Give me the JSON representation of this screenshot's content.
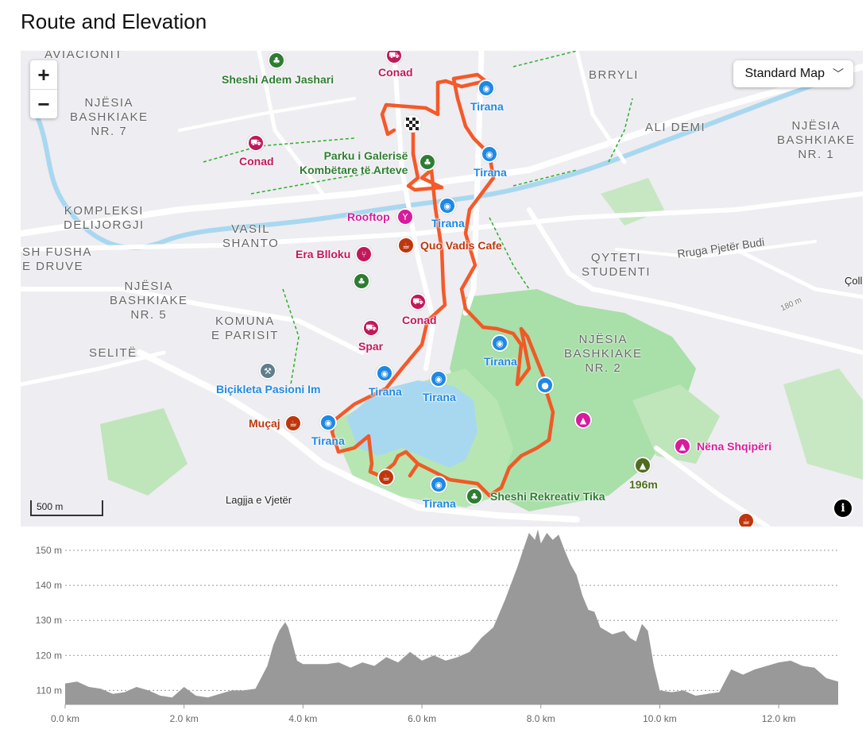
{
  "page": {
    "title": "Route and Elevation"
  },
  "map": {
    "zoom_in": "+",
    "zoom_out": "−",
    "map_style_label": "Standard Map",
    "scale_label": "500 m",
    "info_symbol": "i",
    "start_marker_icon": "checkered-flag-icon",
    "route_color": "#f4511e",
    "area_labels": [
      {
        "text": "AVIACIONIT"
      },
      {
        "text": "NJËSIA\nBASHKIAKE\nNR. 7"
      },
      {
        "text": "BRRYLI"
      },
      {
        "text": "ALI DEMI"
      },
      {
        "text": "NJËSIA\nBASHKIAKE\nNR. 1"
      },
      {
        "text": "KOMPLEKSI\nDELIJORGJI"
      },
      {
        "text": "VASIL\nSHANTO"
      },
      {
        "text": "SH FUSHA\nE DRUVE"
      },
      {
        "text": "QYTETI\nSTUDENTI"
      },
      {
        "text": "NJËSIA\nBASHKIAKE\nNR. 5"
      },
      {
        "text": "KOMUNA\nE PARISIT"
      },
      {
        "text": "SELITË"
      },
      {
        "text": "NJËSIA\nBASHKIAKE\nNR. 2"
      }
    ],
    "street_labels": [
      {
        "text": "Rruga Pjetër Budi"
      },
      {
        "text": "180 m"
      },
      {
        "text": "Lagjja e Vjetër"
      },
      {
        "text": "Çoll"
      }
    ],
    "pois": [
      {
        "icon": "tree-icon",
        "color": "#2e7d32",
        "label": "Sheshi Adem Jashari",
        "label_color": "#2e7d32"
      },
      {
        "icon": "cart-icon",
        "color": "#c2185b",
        "label": "Conad",
        "label_color": "#c2185b"
      },
      {
        "icon": "camera-icon",
        "color": "#1e88e5",
        "label": "Tirana",
        "label_color": "#1e88e5"
      },
      {
        "icon": "cart-icon",
        "color": "#c2185b",
        "label": "Conad",
        "label_color": "#c2185b"
      },
      {
        "icon": "tree-icon",
        "color": "#2e7d32",
        "label": "Parku i Galerisë\nKombëtare të Arteve",
        "label_color": "#2e7d32"
      },
      {
        "icon": "camera-icon",
        "color": "#1e88e5",
        "label": "Tirana",
        "label_color": "#1e88e5"
      },
      {
        "icon": "cocktail-icon",
        "color": "#d81b9c",
        "label": "Rooftop",
        "label_color": "#d81b9c"
      },
      {
        "icon": "camera-icon",
        "color": "#1e88e5",
        "label": "Tirana",
        "label_color": "#1e88e5"
      },
      {
        "icon": "coffee-icon",
        "color": "#bf360c",
        "label": "Quo Vadis Cafe",
        "label_color": "#bf360c"
      },
      {
        "icon": "restaurant-icon",
        "color": "#c2185b",
        "label": "Era Blloku",
        "label_color": "#c2185b"
      },
      {
        "icon": "tree-icon",
        "color": "#2e7d32",
        "label": "",
        "label_color": "#2e7d32"
      },
      {
        "icon": "cart-icon",
        "color": "#c2185b",
        "label": "Conad",
        "label_color": "#c2185b"
      },
      {
        "icon": "cart-icon",
        "color": "#c2185b",
        "label": "Spar",
        "label_color": "#c2185b"
      },
      {
        "icon": "camera-icon",
        "color": "#1e88e5",
        "label": "Tirana",
        "label_color": "#1e88e5"
      },
      {
        "icon": "camera-icon",
        "color": "#1e88e5",
        "label": "Tirana",
        "label_color": "#1e88e5"
      },
      {
        "icon": "camera-icon",
        "color": "#1e88e5",
        "label": "Tirana",
        "label_color": "#1e88e5"
      },
      {
        "icon": "wrench-icon",
        "color": "#607d8b",
        "label": "Biçikleta Pasioni Im",
        "label_color": "#1e88e5"
      },
      {
        "icon": "water-icon",
        "color": "#1e88e5",
        "label": "",
        "label_color": "#1e88e5"
      },
      {
        "icon": "monument-icon",
        "color": "#d81b9c",
        "label": "",
        "label_color": "#d81b9c"
      },
      {
        "icon": "monument-icon",
        "color": "#d81b9c",
        "label": "Nëna Shqipëri",
        "label_color": "#d81b9c"
      },
      {
        "icon": "coffee-icon",
        "color": "#bf360c",
        "label": "Muçaj",
        "label_color": "#bf360c"
      },
      {
        "icon": "camera-icon",
        "color": "#1e88e5",
        "label": "Tirana",
        "label_color": "#1e88e5"
      },
      {
        "icon": "coffee-icon",
        "color": "#bf360c",
        "label": "",
        "label_color": "#bf360c"
      },
      {
        "icon": "camera-icon",
        "color": "#1e88e5",
        "label": "Tirana",
        "label_color": "#1e88e5"
      },
      {
        "icon": "tree-icon",
        "color": "#2e7d32",
        "label": "Sheshi Rekreativ Tika",
        "label_color": "#2e7d32"
      },
      {
        "icon": "peak-icon",
        "color": "#4e6e1e",
        "label": "196m",
        "label_color": "#4e6e1e"
      },
      {
        "icon": "coffee-icon",
        "color": "#bf360c",
        "label": "",
        "label_color": "#bf360c"
      }
    ]
  },
  "chart_data": {
    "type": "area",
    "title": "",
    "xlabel": "",
    "ylabel": "",
    "x_ticks": [
      "0.0 km",
      "2.0 km",
      "4.0 km",
      "6.0 km",
      "8.0 km",
      "10.0 km",
      "12.0 km"
    ],
    "y_ticks": [
      "110 m",
      "120 m",
      "130 m",
      "140 m",
      "150 m"
    ],
    "xlim": [
      0,
      13.0
    ],
    "ylim": [
      106,
      155
    ],
    "grid": true,
    "fill_color": "#999999",
    "series": [
      {
        "x": [
          0,
          0.2,
          0.4,
          0.6,
          0.8,
          1.0,
          1.2,
          1.4,
          1.6,
          1.8,
          2.0,
          2.2,
          2.4,
          2.6,
          2.8,
          3.0,
          3.2,
          3.4,
          3.5,
          3.6,
          3.7,
          3.75,
          3.8,
          3.9,
          4.0,
          4.2,
          4.4,
          4.6,
          4.8,
          5.0,
          5.2,
          5.4,
          5.6,
          5.8,
          6.0,
          6.2,
          6.4,
          6.6,
          6.8,
          7.0,
          7.2,
          7.4,
          7.6,
          7.7,
          7.8,
          7.9,
          7.95,
          8.0,
          8.1,
          8.2,
          8.3,
          8.4,
          8.5,
          8.6,
          8.7,
          8.8,
          8.9,
          9.0,
          9.2,
          9.4,
          9.5,
          9.6,
          9.7,
          9.8,
          9.9,
          10.0,
          10.2,
          10.4,
          10.6,
          10.8,
          11.0,
          11.2,
          11.4,
          11.6,
          11.8,
          12.0,
          12.2,
          12.4,
          12.6,
          12.8,
          13.0
        ],
        "y": [
          112,
          112.5,
          111,
          110.5,
          109,
          109.5,
          111,
          110,
          108.5,
          108,
          111,
          108.5,
          108,
          109,
          110,
          110,
          110.5,
          117,
          123,
          127,
          129.5,
          128,
          125,
          118.5,
          117.5,
          117.5,
          117.5,
          118,
          116.5,
          118,
          117,
          119.5,
          118,
          121,
          118.5,
          120,
          118.5,
          119.5,
          121,
          125,
          128,
          136,
          145,
          150,
          155,
          153,
          156,
          152,
          155,
          153,
          154.5,
          150,
          146,
          143,
          137,
          133,
          132.5,
          128,
          126,
          127,
          125,
          124,
          129,
          127,
          117,
          110,
          109.5,
          110,
          108.5,
          109,
          109.5,
          116,
          114.5,
          116,
          117,
          118,
          118.5,
          117,
          116.5,
          113.5,
          112.5
        ]
      }
    ]
  }
}
